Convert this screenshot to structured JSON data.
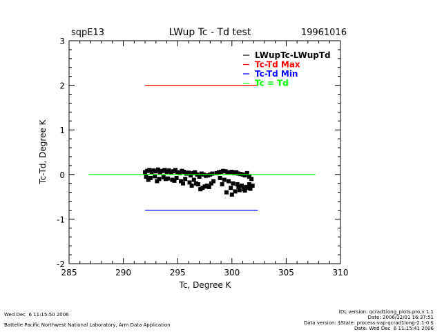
{
  "chart_data": {
    "type": "scatter",
    "title": "LWup Tc - Td test",
    "title_left": "sqpE13",
    "title_right": "19961016",
    "xlabel": "Tc, Degree K",
    "ylabel": "Tc-Td, Degree K",
    "xlim": [
      285,
      310
    ],
    "ylim": [
      -2,
      3
    ],
    "xticks": [
      "285",
      "290",
      "295",
      "300",
      "305",
      "310"
    ],
    "yticks": [
      "-2",
      "-1",
      "0",
      "1",
      "2",
      "3"
    ],
    "grid": false,
    "legend_placement": "top-right",
    "legend": [
      {
        "label": "LWupTc-LWupTd",
        "color": "#000000"
      },
      {
        "label": "Tc-Td Max",
        "color": "#ff0000"
      },
      {
        "label": "Tc-Td Min",
        "color": "#0000ff"
      },
      {
        "label": "Tc = Td",
        "color": "#00ff00"
      }
    ],
    "lines": [
      {
        "name": "Tc-Td Max",
        "color": "#ff0000",
        "x": [
          292.0,
          302.4
        ],
        "y": [
          2.0,
          2.0
        ]
      },
      {
        "name": "Tc-Td Min",
        "color": "#0000ff",
        "x": [
          292.0,
          302.4
        ],
        "y": [
          -0.8,
          -0.8
        ]
      },
      {
        "name": "Tc = Td",
        "color": "#00ff00",
        "x": [
          286.8,
          307.7
        ],
        "y": [
          0.0,
          0.0
        ]
      }
    ],
    "series": [
      {
        "name": "LWupTc-LWupTd",
        "color": "#000000",
        "x": [
          292.0,
          292.2,
          292.4,
          292.6,
          292.8,
          293.0,
          293.2,
          293.4,
          293.6,
          293.8,
          294.0,
          294.2,
          294.4,
          294.6,
          294.8,
          295.0,
          295.2,
          295.4,
          295.6,
          295.8,
          296.0,
          296.2,
          296.4,
          296.6,
          296.8,
          297.0,
          297.2,
          297.4,
          297.6,
          297.8,
          298.0,
          298.2,
          298.6,
          298.8,
          299.0,
          299.2,
          299.4,
          299.6,
          299.8,
          300.0,
          300.2,
          300.4,
          300.6,
          300.8,
          301.0,
          301.2,
          301.4,
          301.6,
          301.8,
          292.1,
          292.5,
          292.9,
          293.3,
          293.7,
          294.1,
          294.5,
          294.9,
          295.3,
          295.7,
          296.1,
          296.5,
          296.9,
          297.3,
          297.7,
          298.1,
          298.9,
          299.3,
          299.7,
          300.1,
          300.5,
          300.9,
          301.3,
          301.7,
          292.3,
          293.1,
          293.9,
          294.7,
          295.5,
          296.3,
          297.1,
          297.9,
          299.1,
          299.9,
          300.7,
          301.5,
          300.3,
          301.1,
          301.9,
          296.7,
          297.5,
          298.3,
          299.5,
          300.0,
          300.6,
          301.2,
          301.6
        ],
        "y": [
          0.05,
          0.08,
          0.1,
          0.06,
          0.09,
          0.07,
          0.11,
          0.05,
          0.08,
          0.1,
          0.06,
          0.09,
          0.04,
          0.07,
          0.1,
          0.05,
          0.03,
          0.08,
          0.06,
          0.02,
          0.04,
          -0.02,
          0.03,
          0.05,
          0.0,
          -0.05,
          0.02,
          0.0,
          -0.03,
          -0.02,
          0.0,
          0.02,
          0.03,
          0.05,
          0.06,
          0.08,
          0.07,
          0.05,
          0.04,
          0.06,
          0.03,
          0.05,
          0.02,
          0.01,
          0.0,
          -0.02,
          0.03,
          -0.05,
          -0.1,
          -0.05,
          -0.08,
          -0.04,
          -0.1,
          -0.06,
          -0.09,
          -0.12,
          -0.08,
          -0.15,
          -0.1,
          -0.18,
          -0.12,
          -0.22,
          -0.3,
          -0.25,
          -0.2,
          -0.08,
          -0.12,
          -0.15,
          -0.2,
          -0.22,
          -0.25,
          -0.28,
          -0.32,
          -0.12,
          -0.15,
          -0.1,
          -0.14,
          -0.2,
          -0.25,
          -0.33,
          -0.28,
          -0.22,
          -0.3,
          -0.35,
          -0.3,
          -0.38,
          -0.33,
          -0.25,
          -0.2,
          -0.27,
          -0.15,
          -0.4,
          -0.45,
          -0.28,
          -0.36,
          -0.22
        ]
      }
    ]
  },
  "footer": {
    "left_line1": "Wed Dec  6 11:15:50 2006",
    "left_line2": "Battelle Pacific Northwest National Laboratory, Arm Data Application",
    "right_line1": "IDL version: qcrad1long_plots.pro,v 1.1",
    "right_line2": "Date: 2006/12/01 16:37:51",
    "right_line3": "Data version: $State: process-vap-qcrad1long-2.1-0 $",
    "right_line4": "Date: Wed Dec  6 11:15:41 2006"
  }
}
